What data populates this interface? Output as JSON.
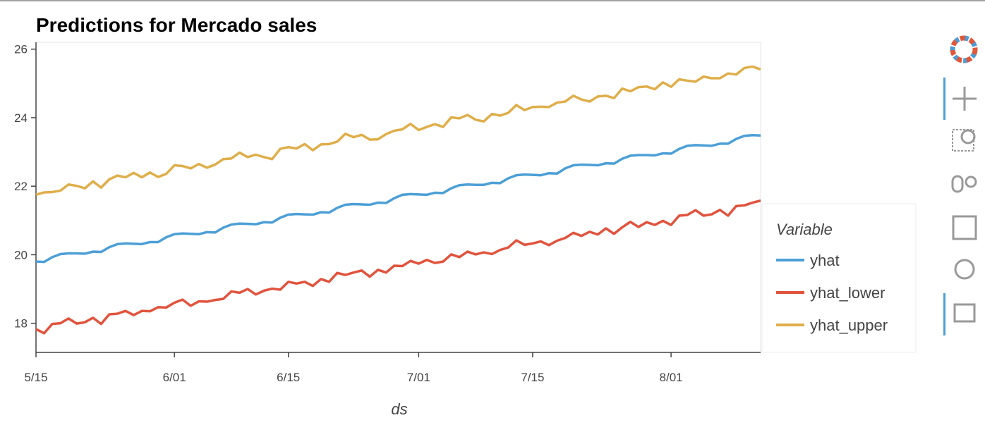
{
  "chart_data": {
    "type": "line",
    "title": "Predictions for Mercado sales",
    "x_label": "ds",
    "legend_title": "Variable",
    "x": [
      "5/15",
      "5/16",
      "5/17",
      "5/18",
      "5/19",
      "5/20",
      "5/21",
      "5/22",
      "5/23",
      "5/24",
      "5/25",
      "5/26",
      "5/27",
      "5/28",
      "5/29",
      "5/30",
      "5/31",
      "6/01",
      "6/02",
      "6/03",
      "6/04",
      "6/05",
      "6/06",
      "6/07",
      "6/08",
      "6/09",
      "6/10",
      "6/11",
      "6/12",
      "6/13",
      "6/14",
      "6/15",
      "6/16",
      "6/17",
      "6/18",
      "6/19",
      "6/20",
      "6/21",
      "6/22",
      "6/23",
      "6/24",
      "6/25",
      "6/26",
      "6/27",
      "6/28",
      "6/29",
      "6/30",
      "7/01",
      "7/02",
      "7/03",
      "7/04",
      "7/05",
      "7/06",
      "7/07",
      "7/08",
      "7/09",
      "7/10",
      "7/11",
      "7/12",
      "7/13",
      "7/14",
      "7/15",
      "7/16",
      "7/17",
      "7/18",
      "7/19",
      "7/20",
      "7/21",
      "7/22",
      "7/23",
      "7/24",
      "7/25",
      "7/26",
      "7/27",
      "7/28",
      "7/29",
      "7/30",
      "7/31",
      "8/01",
      "8/02",
      "8/03",
      "8/04",
      "8/05",
      "8/06",
      "8/07",
      "8/08",
      "8/09",
      "8/10",
      "8/11",
      "8/12"
    ],
    "series": [
      {
        "name": "yhat",
        "color": "#4c9fd6",
        "values": [
          19.8,
          19.79,
          19.93,
          20.02,
          20.04,
          20.04,
          20.03,
          20.09,
          20.08,
          20.22,
          20.31,
          20.33,
          20.32,
          20.31,
          20.37,
          20.37,
          20.51,
          20.6,
          20.62,
          20.61,
          20.6,
          20.66,
          20.65,
          20.79,
          20.88,
          20.91,
          20.9,
          20.89,
          20.95,
          20.94,
          21.08,
          21.17,
          21.19,
          21.18,
          21.17,
          21.24,
          21.23,
          21.37,
          21.46,
          21.48,
          21.47,
          21.46,
          21.52,
          21.51,
          21.65,
          21.75,
          21.77,
          21.76,
          21.75,
          21.81,
          21.8,
          21.94,
          22.03,
          22.05,
          22.04,
          22.04,
          22.1,
          22.09,
          22.23,
          22.32,
          22.34,
          22.33,
          22.32,
          22.38,
          22.37,
          22.52,
          22.61,
          22.63,
          22.62,
          22.61,
          22.67,
          22.66,
          22.8,
          22.89,
          22.91,
          22.91,
          22.9,
          22.96,
          22.95,
          23.09,
          23.18,
          23.2,
          23.19,
          23.18,
          23.24,
          23.24,
          23.38,
          23.47,
          23.49,
          23.48
        ]
      },
      {
        "name": "yhat_lower",
        "color": "#e1533d",
        "values": [
          17.83,
          17.71,
          17.98,
          18.0,
          18.14,
          17.99,
          18.03,
          18.16,
          17.98,
          18.26,
          18.28,
          18.36,
          18.24,
          18.36,
          18.35,
          18.47,
          18.46,
          18.6,
          18.69,
          18.51,
          18.64,
          18.63,
          18.68,
          18.71,
          18.93,
          18.89,
          19.0,
          18.84,
          18.95,
          19.01,
          18.98,
          19.21,
          19.16,
          19.21,
          19.09,
          19.29,
          19.21,
          19.47,
          19.41,
          19.48,
          19.54,
          19.36,
          19.56,
          19.48,
          19.68,
          19.67,
          19.82,
          19.74,
          19.85,
          19.76,
          19.8,
          20.01,
          19.93,
          20.09,
          20.01,
          20.07,
          20.02,
          20.14,
          20.21,
          20.42,
          20.29,
          20.33,
          20.39,
          20.28,
          20.41,
          20.49,
          20.64,
          20.55,
          20.67,
          20.59,
          20.77,
          20.61,
          20.8,
          20.96,
          20.81,
          20.95,
          20.87,
          20.99,
          20.87,
          21.14,
          21.16,
          21.3,
          21.14,
          21.18,
          21.31,
          21.14,
          21.42,
          21.44,
          21.52,
          21.58
        ]
      },
      {
        "name": "yhat_upper",
        "color": "#dfae4a",
        "values": [
          21.75,
          21.82,
          21.83,
          21.87,
          22.05,
          22.01,
          21.94,
          22.14,
          21.96,
          22.2,
          22.31,
          22.26,
          22.39,
          22.26,
          22.4,
          22.27,
          22.36,
          22.61,
          22.59,
          22.52,
          22.65,
          22.54,
          22.63,
          22.79,
          22.81,
          22.98,
          22.85,
          22.92,
          22.85,
          22.79,
          23.09,
          23.14,
          23.1,
          23.23,
          23.05,
          23.22,
          23.23,
          23.3,
          23.53,
          23.43,
          23.5,
          23.36,
          23.37,
          23.52,
          23.62,
          23.66,
          23.82,
          23.64,
          23.73,
          23.81,
          23.73,
          24.01,
          23.98,
          24.08,
          23.94,
          23.89,
          24.11,
          24.06,
          24.14,
          24.37,
          24.22,
          24.31,
          24.32,
          24.31,
          24.44,
          24.47,
          24.64,
          24.53,
          24.47,
          24.62,
          24.64,
          24.57,
          24.85,
          24.77,
          24.89,
          24.91,
          24.83,
          25.03,
          24.9,
          25.12,
          25.08,
          25.05,
          25.2,
          25.15,
          25.15,
          25.29,
          25.26,
          25.45,
          25.49,
          25.41
        ]
      }
    ],
    "xlim": [
      "5/15",
      "8/12"
    ],
    "xticks": [
      "5/15",
      "6/01",
      "6/15",
      "7/01",
      "7/15",
      "8/01"
    ],
    "ylim": [
      17.15,
      26.2
    ],
    "yticks": [
      18,
      20,
      22,
      24,
      26
    ]
  }
}
